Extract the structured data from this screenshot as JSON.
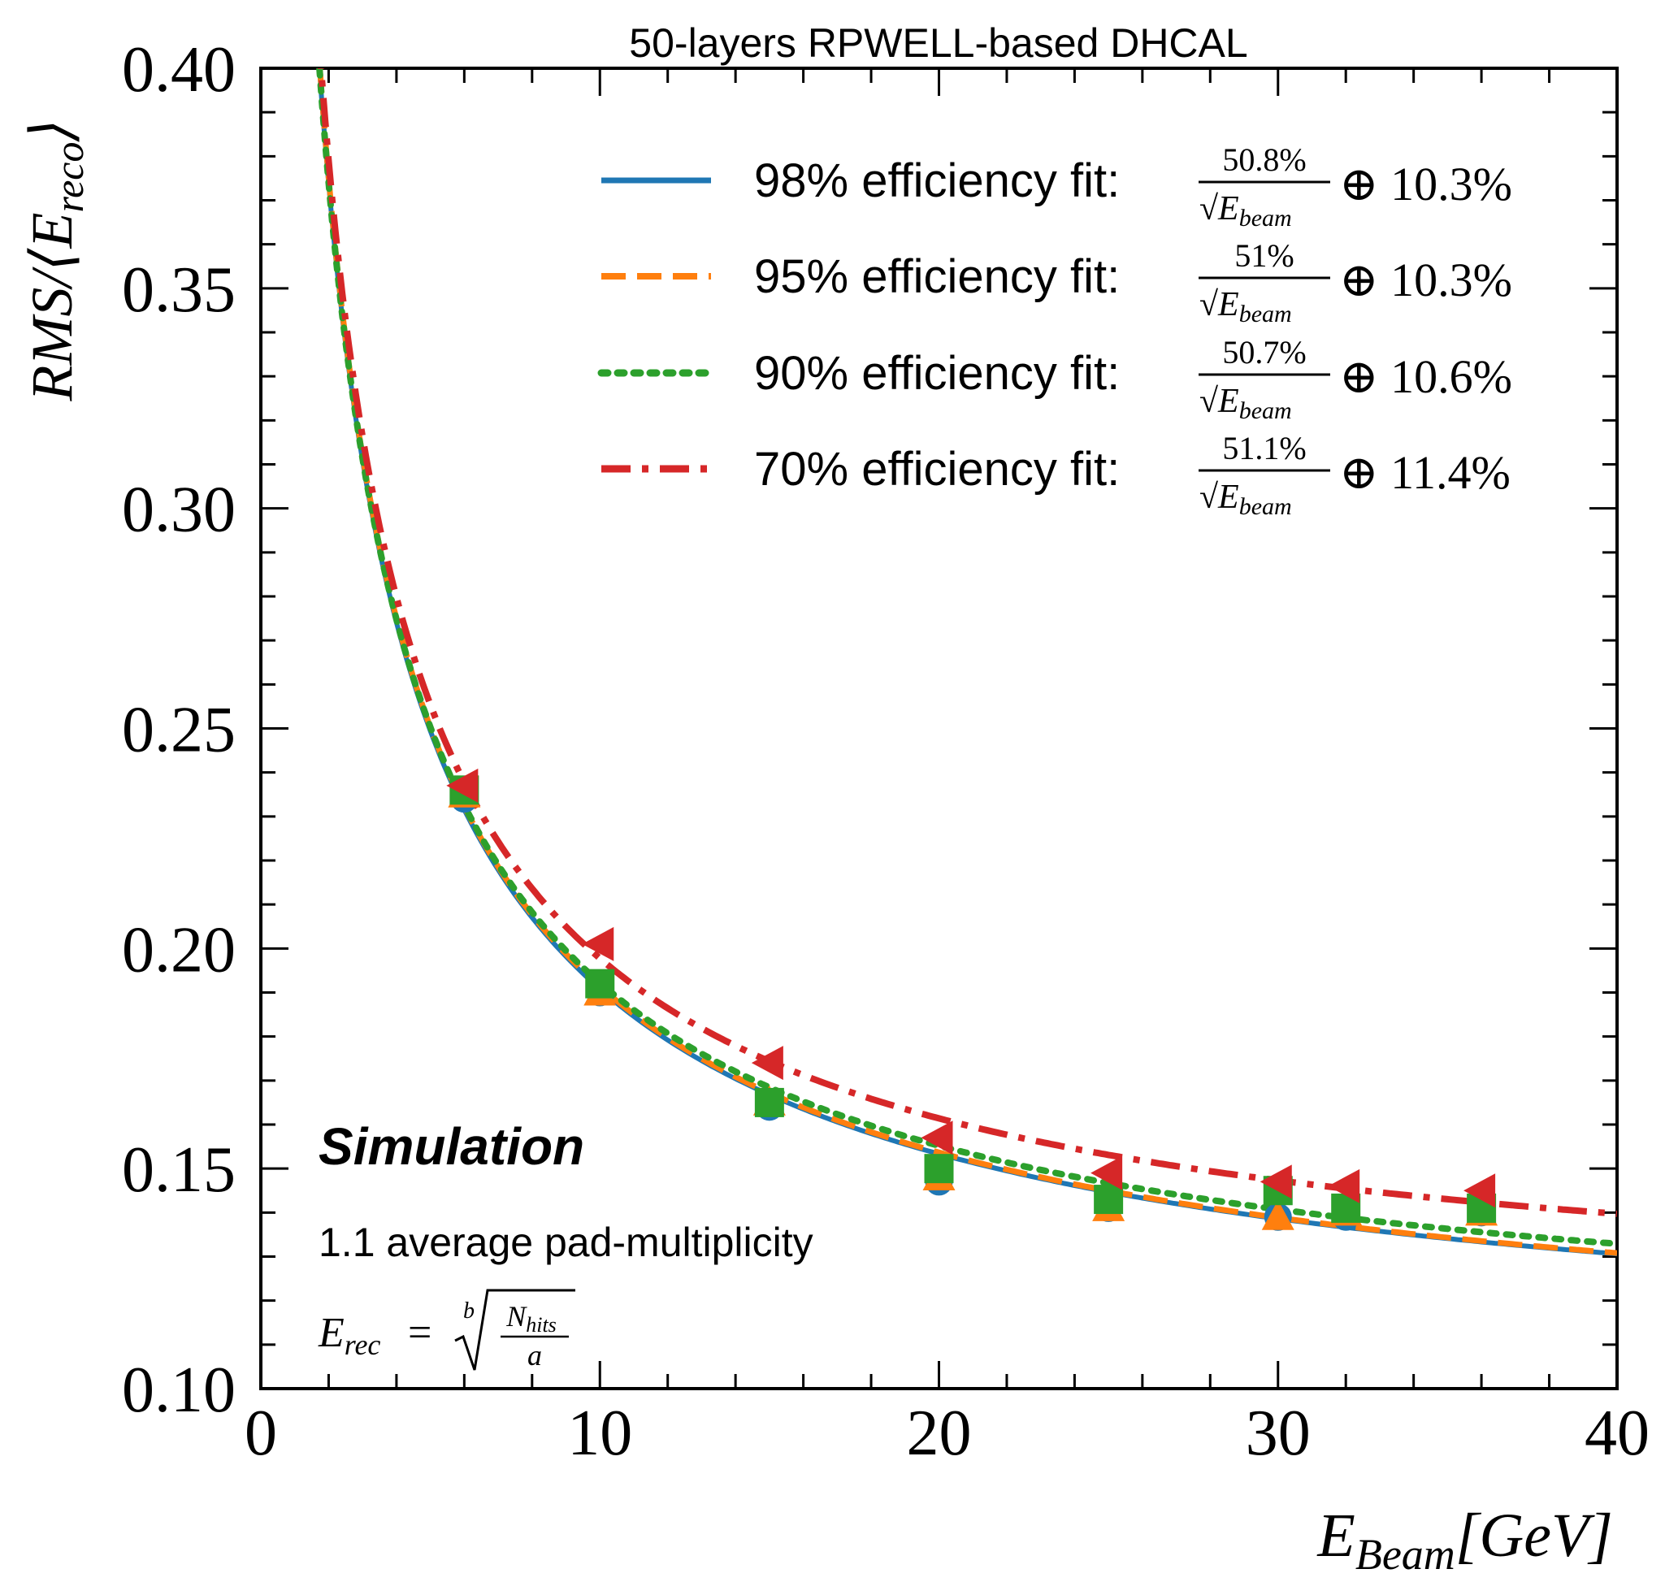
{
  "chart_data": {
    "type": "line",
    "title": "50-layers RPWELL-based DHCAL",
    "xlabel": {
      "main": "E",
      "sub": "Beam",
      "unit": "[GeV]"
    },
    "ylabel": {
      "main": "RMS/⟨E",
      "sub": "reco",
      "close": "⟩"
    },
    "xlim": [
      0,
      40
    ],
    "ylim": [
      0.1,
      0.4
    ],
    "x_ticks": [
      0,
      10,
      20,
      30,
      40
    ],
    "x_tick_labels": [
      "0",
      "10",
      "20",
      "30",
      "40"
    ],
    "y_ticks": [
      0.1,
      0.15,
      0.2,
      0.25,
      0.3,
      0.35,
      0.4
    ],
    "y_tick_labels": [
      "0.10",
      "0.15",
      "0.20",
      "0.25",
      "0.30",
      "0.35",
      "0.40"
    ],
    "grid": false,
    "legend_position": "top-right",
    "x": [
      6,
      10,
      15,
      20,
      25,
      30,
      32,
      36
    ],
    "series": [
      {
        "name": "98% efficiency fit",
        "label": "98% efficiency fit:",
        "numerator": "50.8%",
        "constant": "⊕ 10.3%",
        "stochastic": 0.508,
        "constant_term": 0.103,
        "color": "#1f77b4",
        "line_style": "solid",
        "marker": "circle",
        "values": [
          0.234,
          0.19,
          0.164,
          0.147,
          0.141,
          0.139,
          0.139,
          0.14
        ]
      },
      {
        "name": "95% efficiency fit",
        "label": "95% efficiency fit:",
        "numerator": "51%",
        "constant": "⊕ 10.3%",
        "stochastic": 0.51,
        "constant_term": 0.103,
        "color": "#ff7f0e",
        "line_style": "dashed",
        "marker": "triangle-up",
        "values": [
          0.235,
          0.19,
          0.165,
          0.148,
          0.141,
          0.139,
          0.14,
          0.14
        ]
      },
      {
        "name": "90% efficiency fit",
        "label": "90% efficiency fit:",
        "numerator": "50.7%",
        "constant": "⊕ 10.6%",
        "stochastic": 0.507,
        "constant_term": 0.106,
        "color": "#2ca02c",
        "line_style": "dotted",
        "marker": "square",
        "values": [
          0.236,
          0.192,
          0.165,
          0.15,
          0.143,
          0.145,
          0.141,
          0.141
        ]
      },
      {
        "name": "70% efficiency fit",
        "label": "70% efficiency fit:",
        "numerator": "51.1%",
        "constant": "⊕ 11.4%",
        "stochastic": 0.511,
        "constant_term": 0.114,
        "color": "#d62728",
        "line_style": "dashdot",
        "marker": "triangle-left",
        "values": [
          0.237,
          0.201,
          0.174,
          0.157,
          0.149,
          0.147,
          0.146,
          0.145
        ]
      }
    ],
    "legend_denominator": {
      "main": "√E",
      "sub": "beam"
    },
    "annotations": {
      "simulation": "Simulation",
      "pad_multiplicity": "1.1 average pad-multiplicity",
      "formula": {
        "lhs": "E",
        "lhs_sub": "rec",
        "equals": "=",
        "root_index": "b",
        "numerator": "N",
        "numerator_sub": "hits",
        "denominator": "a"
      }
    }
  }
}
